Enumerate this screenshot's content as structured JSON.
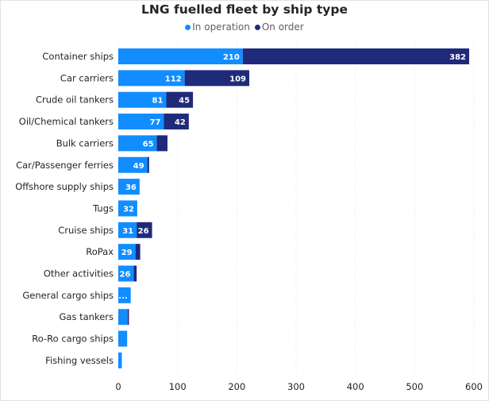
{
  "chart_data": {
    "type": "bar",
    "orientation": "horizontal",
    "stacked": true,
    "title": "LNG fuelled fleet by ship type",
    "categories": [
      "Container ships",
      "Car carriers",
      "Crude oil tankers",
      "Oil/Chemical tankers",
      "Bulk carriers",
      "Car/Passenger ferries",
      "Offshore supply ships",
      "Tugs",
      "Cruise ships",
      "RoPax",
      "Other activities",
      "General cargo ships",
      "Gas tankers",
      "Ro-Ro cargo ships",
      "Fishing vessels"
    ],
    "series": [
      {
        "name": "In operation",
        "color": "#118dff",
        "values": [
          210,
          112,
          81,
          77,
          65,
          49,
          36,
          32,
          31,
          29,
          26,
          21,
          16,
          15,
          6
        ],
        "labels": [
          "210",
          "112",
          "81",
          "77",
          "65",
          "49",
          "36",
          "32",
          "31",
          "29",
          "26",
          "...",
          "",
          "",
          ""
        ]
      },
      {
        "name": "On order",
        "color": "#202a7a",
        "values": [
          382,
          109,
          45,
          42,
          18,
          3,
          0,
          0,
          26,
          8,
          5,
          0,
          2,
          0,
          0
        ],
        "labels": [
          "382",
          "109",
          "45",
          "42",
          "",
          "",
          "",
          "",
          "26",
          "",
          "",
          "",
          "",
          "",
          ""
        ]
      }
    ],
    "xlim": [
      0,
      600
    ],
    "xticks": [
      "0",
      "100",
      "200",
      "300",
      "400",
      "500",
      "600"
    ],
    "grid": true,
    "legend": "top-center"
  }
}
